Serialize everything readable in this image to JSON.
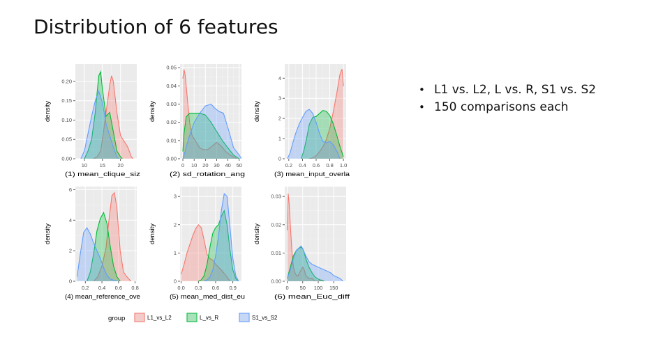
{
  "title": "Distribution of 6 features",
  "bullets": [
    "L1 vs. L2, L vs. R, S1 vs. S2",
    "150 comparisons each"
  ],
  "legend": {
    "title": "group",
    "entries": [
      {
        "label": "L1_vs_L2",
        "stroke": "#F8766D",
        "fill": "#F8766D"
      },
      {
        "label": "L_vs_R",
        "stroke": "#00BA38",
        "fill": "#00BA38"
      },
      {
        "label": "S1_vs_S2",
        "stroke": "#619CFF",
        "fill": "#619CFF"
      }
    ]
  },
  "chart_data": [
    {
      "type": "area",
      "title": "",
      "xlabel": "(1) mean_clique_siz",
      "ylabel": "density",
      "xlim": [
        7.5,
        24.5
      ],
      "ylim": [
        0,
        0.245
      ],
      "xticks": [
        10,
        15,
        20
      ],
      "yticks": [
        0,
        0.05,
        0.1,
        0.15,
        0.2
      ],
      "ytick_labels": [
        "0.00",
        "0.05",
        "0.10",
        "0.15",
        "0.20"
      ],
      "series": [
        {
          "name": "L1_vs_L2",
          "x": [
            12.5,
            13.5,
            14.5,
            15,
            16,
            17,
            17.5,
            18,
            19,
            20,
            21,
            22,
            23,
            23.5
          ],
          "y": [
            0,
            0.005,
            0.02,
            0.05,
            0.12,
            0.19,
            0.215,
            0.2,
            0.12,
            0.06,
            0.045,
            0.03,
            0.005,
            0
          ]
        },
        {
          "name": "L_vs_R",
          "x": [
            10,
            11,
            12,
            13,
            13.5,
            14,
            14.5,
            15,
            16,
            17,
            18,
            19,
            20,
            20.5
          ],
          "y": [
            0,
            0.02,
            0.05,
            0.12,
            0.17,
            0.215,
            0.225,
            0.18,
            0.11,
            0.12,
            0.07,
            0.02,
            0.005,
            0
          ]
        },
        {
          "name": "S1_vs_S2",
          "x": [
            9,
            10,
            11,
            12,
            13,
            14,
            15,
            16,
            17,
            18,
            19,
            19.5
          ],
          "y": [
            0,
            0.02,
            0.065,
            0.11,
            0.15,
            0.175,
            0.145,
            0.09,
            0.06,
            0.03,
            0.005,
            0
          ]
        }
      ]
    },
    {
      "type": "area",
      "title": "",
      "xlabel": "(2) sd_rotation_ang",
      "ylabel": "density",
      "xlim": [
        -2.5,
        52
      ],
      "ylim": [
        0,
        0.052
      ],
      "xticks": [
        0,
        10,
        20,
        30,
        40,
        50
      ],
      "yticks": [
        0,
        0.01,
        0.02,
        0.03,
        0.04,
        0.05
      ],
      "ytick_labels": [
        "0.00",
        "0.01",
        "0.02",
        "0.03",
        "0.04",
        "0.05"
      ],
      "series": [
        {
          "name": "L1_vs_L2",
          "x": [
            0,
            1,
            2,
            4,
            6,
            8,
            10,
            12,
            15,
            18,
            22,
            26,
            30,
            34,
            38,
            42,
            45,
            48
          ],
          "y": [
            0.044,
            0.049,
            0.046,
            0.033,
            0.02,
            0.013,
            0.011,
            0.009,
            0.006,
            0.005,
            0.005,
            0.007,
            0.009,
            0.007,
            0.004,
            0.002,
            0.001,
            0
          ]
        },
        {
          "name": "L_vs_R",
          "x": [
            0,
            1,
            3,
            6,
            10,
            15,
            20,
            25,
            30,
            35,
            40,
            45,
            50
          ],
          "y": [
            0.004,
            0.014,
            0.023,
            0.025,
            0.025,
            0.025,
            0.024,
            0.02,
            0.015,
            0.01,
            0.006,
            0.002,
            0
          ]
        },
        {
          "name": "S1_vs_S2",
          "x": [
            0,
            2,
            5,
            10,
            15,
            20,
            25,
            28,
            32,
            36,
            40,
            45,
            50,
            52
          ],
          "y": [
            0,
            0.004,
            0.011,
            0.02,
            0.025,
            0.029,
            0.03,
            0.028,
            0.026,
            0.025,
            0.017,
            0.006,
            0.002,
            0
          ]
        }
      ]
    },
    {
      "type": "area",
      "title": "",
      "xlabel": "(3) mean_input_overla",
      "ylabel": "density",
      "xlim": [
        0.14,
        1.04
      ],
      "ylim": [
        0,
        4.7
      ],
      "xticks": [
        0.2,
        0.4,
        0.6,
        0.8,
        1.0
      ],
      "yticks": [
        0,
        1,
        2,
        3,
        4
      ],
      "xtick_labels": [
        "0.2",
        "0.4",
        "0.6",
        "0.8",
        "1.0"
      ],
      "series": [
        {
          "name": "L1_vs_L2",
          "x": [
            0.5,
            0.55,
            0.6,
            0.65,
            0.7,
            0.75,
            0.8,
            0.85,
            0.9,
            0.95,
            0.98,
            1.0
          ],
          "y": [
            0,
            0.05,
            0.15,
            0.35,
            0.6,
            0.95,
            1.5,
            2.3,
            3.2,
            4.2,
            4.45,
            3.6
          ]
        },
        {
          "name": "L_vs_R",
          "x": [
            0.38,
            0.42,
            0.46,
            0.5,
            0.55,
            0.6,
            0.65,
            0.7,
            0.75,
            0.8,
            0.85,
            0.9,
            0.95,
            1.0
          ],
          "y": [
            0,
            0.4,
            1.0,
            1.7,
            2.05,
            2.1,
            2.25,
            2.4,
            2.35,
            2.15,
            1.75,
            1.2,
            0.6,
            0.1
          ]
        },
        {
          "name": "S1_vs_S2",
          "x": [
            0.18,
            0.22,
            0.26,
            0.3,
            0.35,
            0.4,
            0.45,
            0.5,
            0.55,
            0.6,
            0.65,
            0.7,
            0.75,
            0.8,
            0.85,
            0.9,
            0.95
          ],
          "y": [
            0,
            0.3,
            0.8,
            1.25,
            1.7,
            2.05,
            2.35,
            2.45,
            2.25,
            1.8,
            1.25,
            0.85,
            0.8,
            0.85,
            0.7,
            0.4,
            0
          ]
        }
      ]
    },
    {
      "type": "area",
      "title": "",
      "xlabel": "(4) mean_reference_ove",
      "ylabel": "density",
      "xlim": [
        0.08,
        0.82
      ],
      "ylim": [
        0,
        6.2
      ],
      "xticks": [
        0.2,
        0.4,
        0.6,
        0.8
      ],
      "yticks": [
        0,
        2,
        4,
        6
      ],
      "xtick_labels": [
        "0.2",
        "0.4",
        "0.6",
        "0.8"
      ],
      "series": [
        {
          "name": "L1_vs_L2",
          "x": [
            0.3,
            0.35,
            0.4,
            0.45,
            0.48,
            0.52,
            0.55,
            0.58,
            0.62,
            0.66,
            0.7,
            0.75
          ],
          "y": [
            0,
            0.3,
            1.0,
            2.2,
            3.8,
            5.6,
            5.8,
            4.8,
            2.0,
            0.6,
            0.3,
            0
          ]
        },
        {
          "name": "L_vs_R",
          "x": [
            0.22,
            0.26,
            0.3,
            0.34,
            0.38,
            0.42,
            0.46,
            0.5,
            0.54,
            0.58,
            0.62
          ],
          "y": [
            0,
            0.6,
            1.8,
            3.3,
            4.1,
            4.5,
            3.8,
            2.3,
            1.0,
            0.3,
            0
          ]
        },
        {
          "name": "S1_vs_S2",
          "x": [
            0.1,
            0.14,
            0.18,
            0.22,
            0.26,
            0.3,
            0.34,
            0.38,
            0.42,
            0.46,
            0.5,
            0.55,
            0.6
          ],
          "y": [
            0.3,
            1.8,
            3.2,
            3.5,
            3.1,
            2.5,
            2.0,
            1.5,
            0.9,
            0.4,
            0.15,
            0.05,
            0
          ]
        }
      ]
    },
    {
      "type": "area",
      "title": "",
      "xlabel": "(5) mean_med_dist_eu",
      "ylabel": "density",
      "xlim": [
        -0.02,
        1.05
      ],
      "ylim": [
        0,
        3.35
      ],
      "xticks": [
        0.0,
        0.3,
        0.6,
        0.9
      ],
      "yticks": [
        0,
        1,
        2,
        3
      ],
      "xtick_labels": [
        "0.0",
        "0.3",
        "0.6",
        "0.9"
      ],
      "series": [
        {
          "name": "L1_vs_L2",
          "x": [
            0,
            0.05,
            0.1,
            0.15,
            0.2,
            0.25,
            0.3,
            0.35,
            0.4,
            0.45,
            0.5,
            0.55,
            0.6,
            0.7,
            0.8,
            0.85
          ],
          "y": [
            0.25,
            0.6,
            1.0,
            1.3,
            1.6,
            1.85,
            2.0,
            1.9,
            1.45,
            0.95,
            0.8,
            0.75,
            0.6,
            0.4,
            0.15,
            0
          ]
        },
        {
          "name": "L_vs_R",
          "x": [
            0.3,
            0.35,
            0.4,
            0.45,
            0.5,
            0.55,
            0.6,
            0.65,
            0.7,
            0.75,
            0.8,
            0.85,
            0.9,
            0.95,
            1.0
          ],
          "y": [
            0,
            0.05,
            0.2,
            0.6,
            1.2,
            1.7,
            1.9,
            2.0,
            2.3,
            2.5,
            2.0,
            1.1,
            0.4,
            0.1,
            0
          ]
        },
        {
          "name": "S1_vs_S2",
          "x": [
            0.4,
            0.45,
            0.5,
            0.55,
            0.6,
            0.65,
            0.7,
            0.75,
            0.8,
            0.85,
            0.9,
            0.95,
            1.0
          ],
          "y": [
            0,
            0.05,
            0.15,
            0.4,
            0.9,
            1.6,
            2.5,
            3.1,
            3.0,
            1.9,
            0.8,
            0.2,
            0
          ]
        }
      ]
    },
    {
      "type": "area",
      "title": "",
      "xlabel": "(6) mean_Euc_diff",
      "ylabel": "density",
      "xlim": [
        -8,
        190
      ],
      "ylim": [
        0,
        0.0335
      ],
      "xticks": [
        0,
        50,
        100,
        150
      ],
      "yticks": [
        0,
        0.01,
        0.02,
        0.03
      ],
      "ytick_labels": [
        "0.00",
        "0.01",
        "0.02",
        "0.03"
      ],
      "series": [
        {
          "name": "L1_vs_L2",
          "x": [
            0,
            3,
            6,
            10,
            15,
            20,
            25,
            30,
            35,
            40,
            45,
            50,
            55,
            60,
            70,
            80,
            90,
            100,
            110,
            120
          ],
          "y": [
            0.018,
            0.031,
            0.028,
            0.02,
            0.011,
            0.005,
            0.003,
            0.002,
            0.002,
            0.003,
            0.004,
            0.005,
            0.004,
            0.002,
            0.001,
            0.001,
            0,
            0,
            0.0005,
            0
          ]
        },
        {
          "name": "L_vs_R",
          "x": [
            0,
            10,
            20,
            30,
            40,
            45,
            50,
            55,
            60,
            70,
            80,
            90,
            100,
            110,
            120
          ],
          "y": [
            0.001,
            0.005,
            0.009,
            0.011,
            0.0118,
            0.012,
            0.0115,
            0.01,
            0.008,
            0.005,
            0.003,
            0.0015,
            0.0008,
            0.0003,
            0
          ]
        },
        {
          "name": "S1_vs_S2",
          "x": [
            0,
            10,
            20,
            30,
            40,
            45,
            50,
            60,
            70,
            80,
            90,
            100,
            110,
            120,
            130,
            140,
            150,
            160,
            170,
            180
          ],
          "y": [
            0.001,
            0.004,
            0.008,
            0.011,
            0.012,
            0.0125,
            0.0115,
            0.009,
            0.007,
            0.006,
            0.0055,
            0.005,
            0.0045,
            0.004,
            0.0035,
            0.003,
            0.002,
            0.0015,
            0.001,
            0
          ]
        }
      ]
    }
  ]
}
